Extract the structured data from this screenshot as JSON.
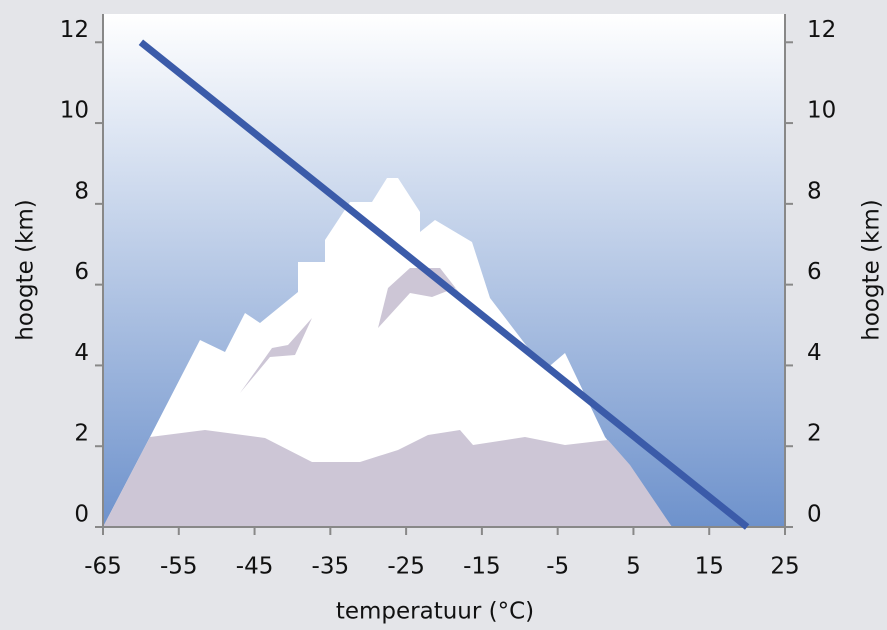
{
  "chart_data": {
    "type": "line",
    "x": [
      -60,
      20
    ],
    "values": [
      12,
      0
    ],
    "color": "#3b5ba9",
    "xlabel": "temperatuur (°C)",
    "ylabel": "hoogte (km)",
    "y2label": "hoogte (km)",
    "xlim": [
      -65,
      25
    ],
    "xticks": [
      -65,
      -55,
      -45,
      -35,
      -25,
      -15,
      -5,
      5,
      15,
      25
    ],
    "ylim": [
      0,
      12.7
    ],
    "yticks": [
      0,
      2,
      4,
      6,
      8,
      10,
      12
    ],
    "y2lim": [
      0,
      12.7
    ],
    "y2ticks": [
      0,
      2,
      4,
      6,
      8,
      10,
      12
    ]
  }
}
